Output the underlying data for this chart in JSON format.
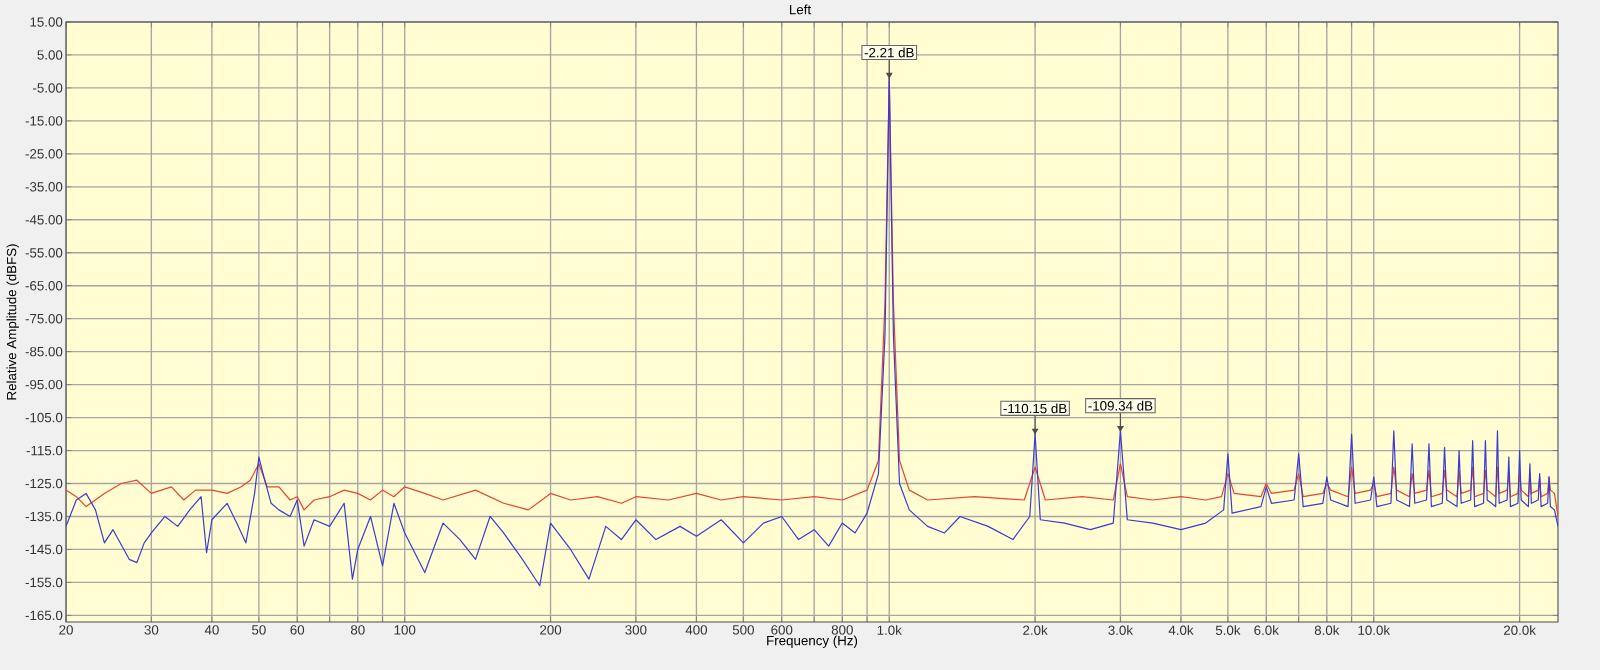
{
  "chart_data": {
    "type": "line",
    "title": "Left",
    "xlabel": "Frequency (Hz)",
    "ylabel": "Relative Amplitude (dBFS)",
    "log": "x",
    "grid": true,
    "marker": "none",
    "line_style": "solid",
    "xlim": [
      20,
      24000
    ],
    "ylim": [
      -167,
      15
    ],
    "xticks": [
      20,
      30,
      40,
      50,
      60,
      {
        "value": 70,
        "label": null
      },
      80,
      {
        "value": 90,
        "label": null
      },
      100,
      200,
      300,
      400,
      500,
      600,
      {
        "value": 700,
        "label": null
      },
      800,
      {
        "value": 900,
        "label": null
      },
      {
        "value": 1000,
        "label": "1.0k"
      },
      {
        "value": 2000,
        "label": "2.0k"
      },
      {
        "value": 3000,
        "label": "3.0k"
      },
      {
        "value": 4000,
        "label": "4.0k"
      },
      {
        "value": 5000,
        "label": "5.0k"
      },
      {
        "value": 6000,
        "label": "6.0k"
      },
      {
        "value": 7000,
        "label": null
      },
      {
        "value": 8000,
        "label": "8.0k"
      },
      {
        "value": 9000,
        "label": null
      },
      {
        "value": 10000,
        "label": "10.0k"
      },
      {
        "value": 20000,
        "label": "20.0k"
      }
    ],
    "yticks": [
      {
        "value": 15,
        "label": "15.00"
      },
      {
        "value": 5,
        "label": "5.00"
      },
      {
        "value": -5,
        "label": "-5.00"
      },
      {
        "value": -15,
        "label": "-15.00"
      },
      {
        "value": -25,
        "label": "-25.00"
      },
      {
        "value": -35,
        "label": "-35.00"
      },
      {
        "value": -45,
        "label": "-45.00"
      },
      {
        "value": -55,
        "label": "-55.00"
      },
      {
        "value": -65,
        "label": "-65.00"
      },
      {
        "value": -75,
        "label": "-75.00"
      },
      {
        "value": -85,
        "label": "-85.00"
      },
      {
        "value": -95,
        "label": "-95.00"
      },
      {
        "value": -105,
        "label": "-105.0"
      },
      {
        "value": -115,
        "label": "-115.0"
      },
      {
        "value": -125,
        "label": "-125.0"
      },
      {
        "value": -135,
        "label": "-135.0"
      },
      {
        "value": -145,
        "label": "-145.0"
      },
      {
        "value": -155,
        "label": "-155.0"
      },
      {
        "value": -165,
        "label": "-165.0"
      }
    ],
    "annotations": [
      {
        "text": "-2.21 dB",
        "x": 1000,
        "y": -2.21
      },
      {
        "text": "-110.15 dB",
        "x": 2000,
        "y": -110.15
      },
      {
        "text": "-109.34 dB",
        "x": 3000,
        "y": -109.34
      }
    ],
    "series": [
      {
        "color": "#e8452e",
        "x": [
          20,
          21,
          22,
          24,
          26,
          28,
          30,
          33,
          35,
          37,
          40,
          43,
          46,
          48,
          50,
          52,
          55,
          58,
          60,
          62,
          65,
          70,
          75,
          80,
          85,
          90,
          95,
          100,
          110,
          120,
          140,
          160,
          180,
          200,
          220,
          250,
          280,
          300,
          350,
          400,
          450,
          500,
          600,
          700,
          800,
          900,
          950,
          980,
          1000,
          1020,
          1050,
          1100,
          1200,
          1500,
          1900,
          2000,
          2100,
          2500,
          2900,
          3000,
          3100,
          3500,
          4000,
          4500,
          4850,
          5000,
          5150,
          5850,
          6000,
          6150,
          6850,
          7000,
          7150,
          7850,
          8000,
          8150,
          8850,
          9000,
          9150,
          9850,
          10000,
          10150,
          10850,
          11000,
          11150,
          11850,
          12000,
          12150,
          12850,
          13000,
          13150,
          13850,
          14000,
          14150,
          14850,
          15000,
          15150,
          15850,
          16000,
          16150,
          16850,
          17000,
          17150,
          17850,
          18000,
          18150,
          18850,
          19000,
          19150,
          19850,
          20000,
          20150,
          20850,
          21000,
          21150,
          21850,
          22000,
          22150,
          22850,
          23000,
          23150,
          23600,
          24000
        ],
        "values": [
          -127,
          -129,
          -132,
          -128,
          -125,
          -124,
          -128,
          -126,
          -130,
          -127,
          -127,
          -128,
          -126,
          -124,
          -119,
          -126,
          -126,
          -130,
          -129,
          -133,
          -130,
          -129,
          -127,
          -128,
          -130,
          -127,
          -129,
          -126,
          -128,
          -130,
          -127,
          -131,
          -133,
          -128,
          -130,
          -129,
          -131,
          -129,
          -130,
          -128,
          -130,
          -129,
          -130,
          -129,
          -130,
          -127,
          -118,
          -70,
          -2,
          -70,
          -118,
          -127,
          -130,
          -129,
          -130,
          -120,
          -130,
          -129,
          -130,
          -119,
          -129,
          -130,
          -129,
          -130,
          -129,
          -122,
          -128,
          -129,
          -125,
          -128,
          -127,
          -122,
          -129,
          -128,
          -125,
          -127,
          -129,
          -120,
          -128,
          -127,
          -125,
          -129,
          -128,
          -120,
          -127,
          -129,
          -122,
          -128,
          -127,
          -121,
          -129,
          -128,
          -121,
          -127,
          -129,
          -121,
          -128,
          -127,
          -120,
          -129,
          -128,
          -121,
          -127,
          -129,
          -120,
          -128,
          -127,
          -122,
          -129,
          -128,
          -122,
          -127,
          -129,
          -122,
          -128,
          -127,
          -123,
          -129,
          -128,
          -123,
          -127,
          -128,
          -135
        ]
      },
      {
        "color": "#3b3bd0",
        "x": [
          20,
          21,
          22,
          23,
          24,
          25,
          27,
          28,
          29,
          30,
          32,
          34,
          36,
          38,
          39,
          40,
          43,
          45,
          47,
          49,
          50,
          51,
          53,
          55,
          58,
          60,
          62,
          65,
          70,
          75,
          78,
          80,
          85,
          90,
          95,
          100,
          110,
          120,
          130,
          140,
          150,
          160,
          175,
          190,
          200,
          220,
          240,
          260,
          280,
          300,
          330,
          370,
          400,
          450,
          500,
          550,
          600,
          650,
          700,
          750,
          800,
          850,
          900,
          950,
          980,
          1000,
          1020,
          1050,
          1100,
          1200,
          1300,
          1400,
          1600,
          1800,
          1950,
          2000,
          2050,
          2300,
          2600,
          2900,
          3000,
          3100,
          3500,
          4000,
          4500,
          4900,
          5000,
          5100,
          5850,
          6000,
          6150,
          6850,
          7000,
          7150,
          7850,
          8000,
          8150,
          8850,
          9000,
          9150,
          9850,
          10000,
          10150,
          10850,
          11000,
          11150,
          11850,
          12000,
          12150,
          12850,
          13000,
          13150,
          13850,
          14000,
          14150,
          14850,
          15000,
          15150,
          15850,
          16000,
          16150,
          16850,
          17000,
          17150,
          17850,
          18000,
          18150,
          18850,
          19000,
          19150,
          19850,
          20000,
          20150,
          20850,
          21000,
          21150,
          21850,
          22000,
          22150,
          22850,
          23000,
          23150,
          23600,
          24000
        ],
        "values": [
          -138,
          -130,
          -128,
          -133,
          -143,
          -139,
          -148,
          -149,
          -143,
          -140,
          -135,
          -138,
          -133,
          -129,
          -146,
          -136,
          -131,
          -137,
          -143,
          -128,
          -117,
          -122,
          -131,
          -133,
          -135,
          -130,
          -144,
          -136,
          -138,
          -131,
          -154,
          -145,
          -135,
          -150,
          -131,
          -140,
          -152,
          -137,
          -142,
          -148,
          -135,
          -140,
          -148,
          -156,
          -137,
          -145,
          -154,
          -138,
          -142,
          -136,
          -142,
          -138,
          -141,
          -136,
          -143,
          -137,
          -135,
          -142,
          -139,
          -144,
          -137,
          -140,
          -134,
          -122,
          -80,
          -2,
          -80,
          -125,
          -133,
          -138,
          -140,
          -135,
          -138,
          -142,
          -135,
          -110,
          -136,
          -137,
          -139,
          -137,
          -109,
          -136,
          -137,
          -139,
          -137,
          -133,
          -116,
          -134,
          -132,
          -126,
          -131,
          -130,
          -116,
          -132,
          -131,
          -123,
          -130,
          -132,
          -110,
          -131,
          -130,
          -123,
          -132,
          -131,
          -109,
          -130,
          -132,
          -113,
          -131,
          -130,
          -113,
          -132,
          -131,
          -114,
          -130,
          -132,
          -115,
          -131,
          -130,
          -112,
          -132,
          -131,
          -112,
          -130,
          -132,
          -109,
          -131,
          -130,
          -117,
          -132,
          -131,
          -115,
          -130,
          -132,
          -119,
          -131,
          -130,
          -122,
          -132,
          -131,
          -123,
          -132,
          -133,
          -138
        ]
      }
    ]
  }
}
